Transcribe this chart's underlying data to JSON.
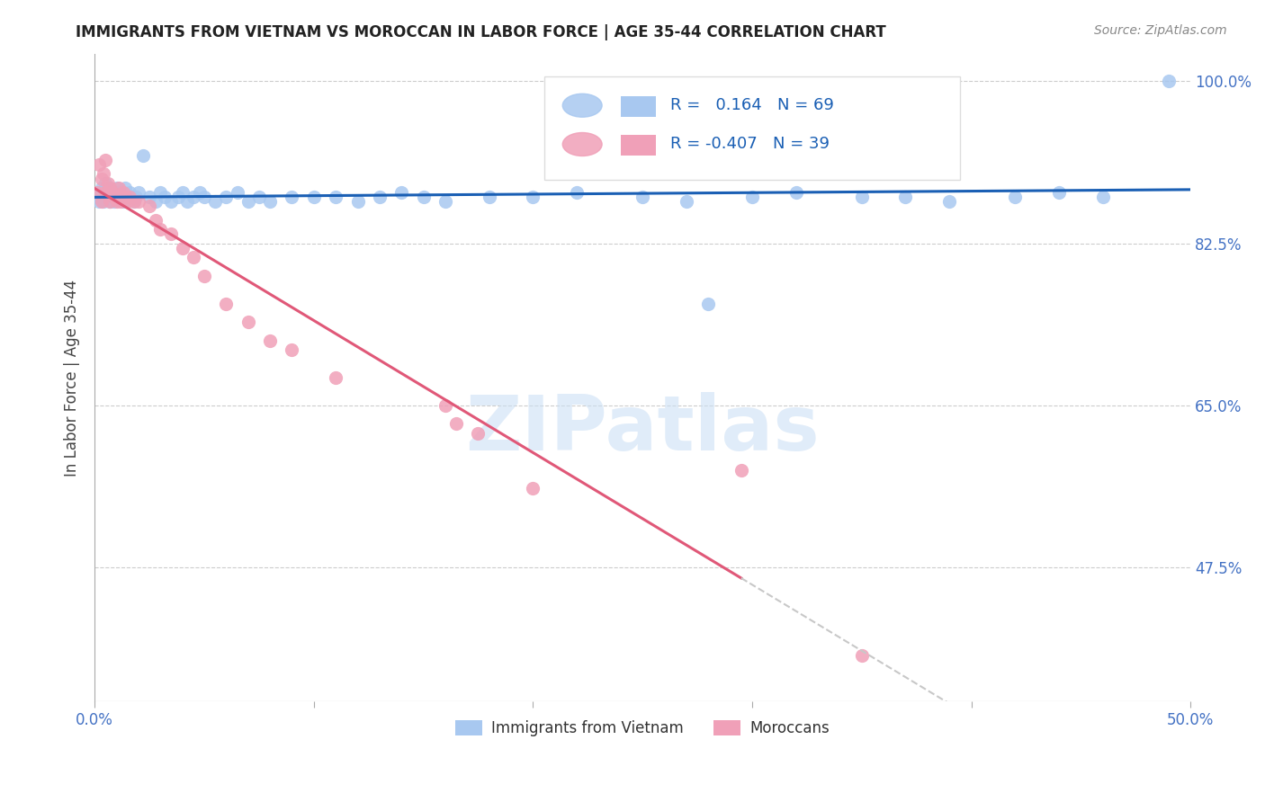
{
  "title": "IMMIGRANTS FROM VIETNAM VS MOROCCAN IN LABOR FORCE | AGE 35-44 CORRELATION CHART",
  "source": "Source: ZipAtlas.com",
  "ylabel": "In Labor Force | Age 35-44",
  "xlim": [
    0.0,
    0.5
  ],
  "ylim": [
    0.33,
    1.03
  ],
  "yticks": [
    0.475,
    0.65,
    0.825,
    1.0
  ],
  "yticklabels": [
    "47.5%",
    "65.0%",
    "82.5%",
    "100.0%"
  ],
  "r_vietnam": 0.164,
  "n_vietnam": 69,
  "r_moroccan": -0.407,
  "n_moroccan": 39,
  "color_vietnam": "#a8c8f0",
  "color_moroccan": "#f0a0b8",
  "trend_color_vietnam": "#1a5fb4",
  "trend_color_moroccan": "#e05878",
  "dash_color": "#c8c8c8",
  "watermark": "ZIPatlas",
  "vietnam_x": [
    0.001,
    0.002,
    0.002,
    0.003,
    0.003,
    0.004,
    0.004,
    0.005,
    0.005,
    0.006,
    0.006,
    0.007,
    0.007,
    0.008,
    0.008,
    0.009,
    0.01,
    0.01,
    0.011,
    0.012,
    0.013,
    0.014,
    0.015,
    0.016,
    0.017,
    0.018,
    0.019,
    0.02,
    0.022,
    0.025,
    0.028,
    0.03,
    0.032,
    0.035,
    0.038,
    0.04,
    0.042,
    0.045,
    0.048,
    0.05,
    0.055,
    0.06,
    0.065,
    0.07,
    0.075,
    0.08,
    0.09,
    0.1,
    0.11,
    0.12,
    0.13,
    0.14,
    0.15,
    0.16,
    0.18,
    0.2,
    0.22,
    0.25,
    0.27,
    0.28,
    0.3,
    0.32,
    0.35,
    0.37,
    0.39,
    0.42,
    0.44,
    0.46,
    0.49
  ],
  "vietnam_y": [
    0.875,
    0.88,
    0.87,
    0.885,
    0.875,
    0.88,
    0.87,
    0.89,
    0.875,
    0.88,
    0.875,
    0.885,
    0.87,
    0.88,
    0.875,
    0.87,
    0.885,
    0.875,
    0.88,
    0.875,
    0.87,
    0.885,
    0.875,
    0.88,
    0.875,
    0.87,
    0.875,
    0.88,
    0.92,
    0.875,
    0.87,
    0.88,
    0.875,
    0.87,
    0.875,
    0.88,
    0.87,
    0.875,
    0.88,
    0.875,
    0.87,
    0.875,
    0.88,
    0.87,
    0.875,
    0.87,
    0.875,
    0.875,
    0.875,
    0.87,
    0.875,
    0.88,
    0.875,
    0.87,
    0.875,
    0.875,
    0.88,
    0.875,
    0.87,
    0.76,
    0.875,
    0.88,
    0.875,
    0.875,
    0.87,
    0.875,
    0.88,
    0.875,
    1.0
  ],
  "moroccan_x": [
    0.001,
    0.002,
    0.003,
    0.003,
    0.004,
    0.005,
    0.005,
    0.006,
    0.007,
    0.007,
    0.008,
    0.009,
    0.01,
    0.011,
    0.012,
    0.013,
    0.014,
    0.015,
    0.016,
    0.018,
    0.02,
    0.025,
    0.028,
    0.03,
    0.035,
    0.04,
    0.045,
    0.05,
    0.06,
    0.07,
    0.08,
    0.09,
    0.11,
    0.16,
    0.165,
    0.175,
    0.2,
    0.295,
    0.35
  ],
  "moroccan_y": [
    0.88,
    0.91,
    0.895,
    0.87,
    0.9,
    0.915,
    0.88,
    0.89,
    0.885,
    0.87,
    0.88,
    0.875,
    0.87,
    0.885,
    0.87,
    0.88,
    0.875,
    0.87,
    0.875,
    0.87,
    0.87,
    0.865,
    0.85,
    0.84,
    0.835,
    0.82,
    0.81,
    0.79,
    0.76,
    0.74,
    0.72,
    0.71,
    0.68,
    0.65,
    0.63,
    0.62,
    0.56,
    0.58,
    0.38
  ]
}
